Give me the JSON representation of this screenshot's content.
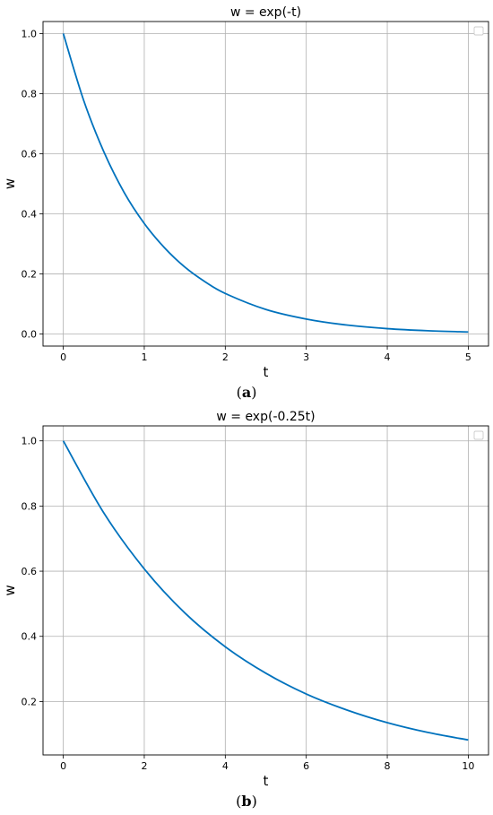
{
  "chart_data": [
    {
      "type": "line",
      "title": "w = exp(-t)",
      "xlabel": "t",
      "ylabel": "w",
      "xlim": [
        -0.25,
        5.25
      ],
      "ylim": [
        -0.04,
        1.04
      ],
      "xticks": [
        "0",
        "1",
        "2",
        "3",
        "4",
        "5"
      ],
      "yticks": [
        "0.0",
        "0.2",
        "0.4",
        "0.6",
        "0.8",
        "1.0"
      ],
      "grid": true,
      "legend": "top-right (empty)",
      "series": [
        {
          "color": "#0072bd",
          "x": [
            0,
            0.25,
            0.5,
            0.75,
            1,
            1.25,
            1.5,
            1.75,
            2,
            2.5,
            3,
            3.5,
            4,
            4.5,
            5
          ],
          "y": [
            1.0,
            0.779,
            0.607,
            0.472,
            0.368,
            0.287,
            0.223,
            0.174,
            0.135,
            0.082,
            0.05,
            0.03,
            0.018,
            0.011,
            0.007
          ]
        }
      ],
      "panel": "a"
    },
    {
      "type": "line",
      "title": "w = exp(-0.25t)",
      "xlabel": "t",
      "ylabel": "w",
      "xlim": [
        -0.5,
        10.5
      ],
      "ylim": [
        0.036,
        1.046
      ],
      "xticks": [
        "0",
        "2",
        "4",
        "6",
        "8",
        "10"
      ],
      "yticks": [
        "0.2",
        "0.4",
        "0.6",
        "0.8",
        "1.0"
      ],
      "grid": true,
      "legend": "top-right (empty)",
      "series": [
        {
          "color": "#0072bd",
          "x": [
            0,
            1,
            2,
            3,
            4,
            5,
            6,
            7,
            8,
            9,
            10
          ],
          "y": [
            1.0,
            0.779,
            0.607,
            0.472,
            0.368,
            0.287,
            0.223,
            0.174,
            0.135,
            0.105,
            0.082
          ]
        }
      ],
      "panel": "b"
    }
  ],
  "labels": {
    "a": "a",
    "b": "b"
  }
}
